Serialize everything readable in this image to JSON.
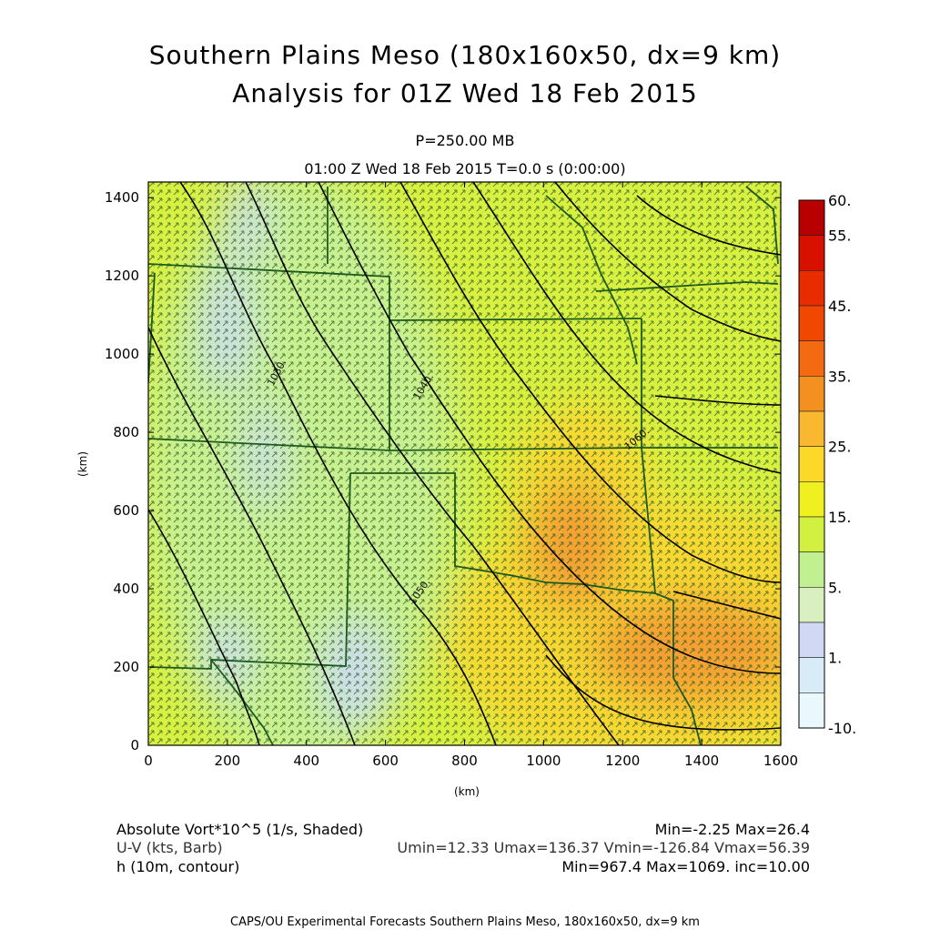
{
  "title_line1": "Southern Plains Meso (180x160x50, dx=9 km)",
  "title_line2": "Analysis for 01Z Wed 18 Feb 2015",
  "level_label": "P=250.00 MB",
  "time_label": "01:00 Z Wed 18 Feb 2015    T=0.0 s (0:00:00)",
  "field_info": [
    {
      "name": "Absolute Vort*10^5 (1/s, Shaded)",
      "stats": "Min=-2.25 Max=26.4",
      "color": "#000000"
    },
    {
      "name": "U-V (kts, Barb)",
      "stats": "Umin=12.33 Umax=136.37 Vmin=-126.84 Vmax=56.39",
      "color": "#333333"
    },
    {
      "name": "h (10m, contour)",
      "stats": "Min=967.4 Max=1069. inc=10.00",
      "color": "#000000"
    }
  ],
  "footer": "CAPS/OU Experimental Forecasts  Southern Plains Meso, 180x160x50, dx=9 km",
  "chart_data": {
    "type": "heatmap",
    "xlabel": "(km)",
    "ylabel": "(km)",
    "xlim": [
      0,
      1600
    ],
    "ylim": [
      0,
      1440
    ],
    "x_ticks": [
      "0",
      "200",
      "400",
      "600",
      "800",
      "1000",
      "1200",
      "1400",
      "1600"
    ],
    "y_ticks": [
      "0",
      "200",
      "400",
      "600",
      "800",
      "1000",
      "1200",
      "1400"
    ],
    "colorbar": {
      "labels": [
        "60.",
        "55.",
        "45.",
        "35.",
        "25.",
        "15.",
        "5.",
        "1.",
        "-10."
      ],
      "colors": [
        "#b80000",
        "#d81000",
        "#e82c00",
        "#f04800",
        "#f46a10",
        "#f49020",
        "#fab830",
        "#fcd828",
        "#f0f020",
        "#d2f040",
        "#c0f090",
        "#d8f0c0",
        "#d0d8f4",
        "#d8ecf8",
        "#e8f8fc"
      ]
    },
    "contour_labels": [
      "1030.",
      "1040.",
      "1050.",
      "1060."
    ],
    "vorticity_colors": {
      "low": "#ccdcf0",
      "light": "#c8f090",
      "mid": "#d8f040",
      "high": "#f8d830",
      "peak": "#f4a030"
    },
    "barb_color": "#1f4f1f",
    "border_color": "#1e5a1e"
  }
}
